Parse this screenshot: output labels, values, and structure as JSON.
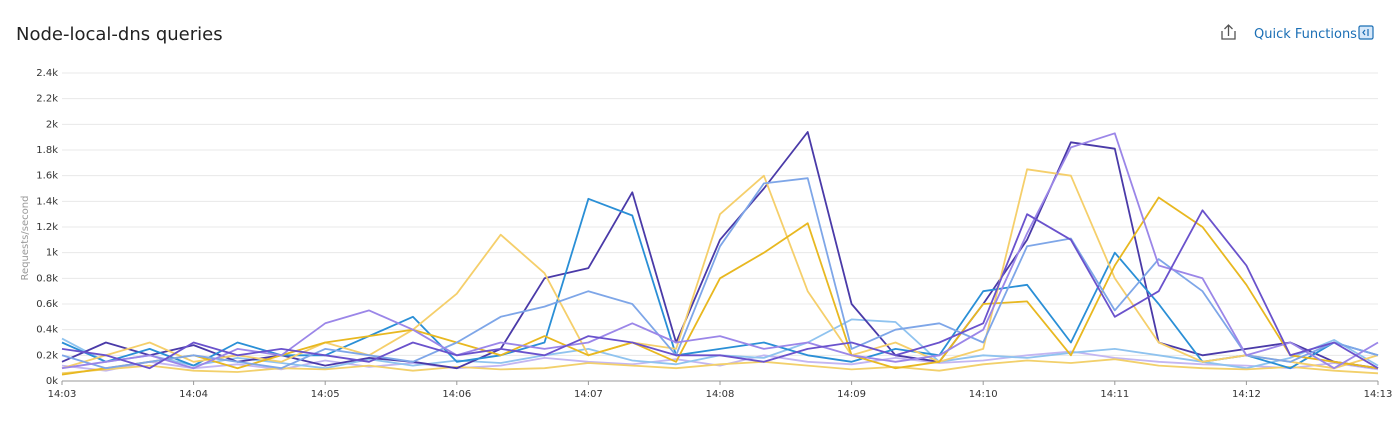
{
  "header": {
    "title": "Node-local-dns queries",
    "link": "Quick Functions"
  },
  "chart_data": {
    "type": "line",
    "y_label": "Requests/second",
    "categories": [
      "14:03",
      null,
      null,
      "14:04",
      null,
      null,
      "14:05",
      null,
      null,
      "14:06",
      null,
      null,
      "14:07",
      null,
      null,
      "14:08",
      null,
      null,
      "14:09",
      null,
      null,
      "14:10",
      null,
      null,
      "14:11",
      null,
      null,
      "14:12",
      null,
      null,
      "14:13"
    ],
    "ylim": [
      0,
      2400
    ],
    "yticks": [
      {
        "value": 0,
        "label": "0k"
      },
      {
        "value": 200,
        "label": "0.2k"
      },
      {
        "value": 400,
        "label": "0.4k"
      },
      {
        "value": 600,
        "label": "0.6k"
      },
      {
        "value": 800,
        "label": "0.8k"
      },
      {
        "value": 1000,
        "label": "1k"
      },
      {
        "value": 1200,
        "label": "1.2k"
      },
      {
        "value": 1400,
        "label": "1.4k"
      },
      {
        "value": 1600,
        "label": "1.6k"
      },
      {
        "value": 1800,
        "label": "1.8k"
      },
      {
        "value": 2000,
        "label": "2k"
      },
      {
        "value": 2200,
        "label": "2.2k"
      },
      {
        "value": 2400,
        "label": "2.4k"
      }
    ],
    "grid": true,
    "series": [
      {
        "color": "#c3b6f2",
        "values": [
          120,
          80,
          150,
          100,
          130,
          90,
          160,
          110,
          140,
          100,
          120,
          180,
          150,
          130,
          170,
          120,
          200,
          150,
          130,
          180,
          140,
          160,
          200,
          230,
          180,
          150,
          130,
          120,
          100,
          140,
          90
        ]
      },
      {
        "color": "#8fc3ef",
        "values": [
          330,
          150,
          200,
          120,
          180,
          140,
          100,
          170,
          120,
          160,
          140,
          200,
          250,
          160,
          130,
          200,
          180,
          300,
          480,
          460,
          150,
          200,
          180,
          220,
          250,
          200,
          150,
          100,
          180,
          320,
          120
        ]
      },
      {
        "color": "#f2d06b",
        "values": [
          60,
          90,
          120,
          80,
          70,
          100,
          90,
          120,
          80,
          110,
          90,
          100,
          140,
          120,
          100,
          130,
          150,
          120,
          90,
          110,
          80,
          130,
          160,
          140,
          170,
          120,
          100,
          90,
          110,
          80,
          60
        ]
      },
      {
        "color": "#4a3aa8",
        "values": [
          150,
          300,
          200,
          280,
          150,
          200,
          120,
          180,
          150,
          100,
          250,
          800,
          880,
          1470,
          300,
          1100,
          1500,
          1940,
          600,
          200,
          150,
          600,
          1100,
          1860,
          1810,
          300,
          200,
          250,
          300,
          150,
          100
        ]
      },
      {
        "color": "#2a8fd6",
        "values": [
          300,
          150,
          250,
          120,
          300,
          200,
          200,
          350,
          500,
          150,
          200,
          300,
          1420,
          1290,
          200,
          250,
          300,
          200,
          150,
          250,
          200,
          700,
          750,
          300,
          1000,
          600,
          150,
          200,
          100,
          300,
          200
        ]
      },
      {
        "color": "#f5cf6b",
        "values": [
          100,
          200,
          300,
          150,
          200,
          150,
          300,
          200,
          400,
          680,
          1140,
          840,
          200,
          300,
          250,
          1300,
          1600,
          700,
          200,
          300,
          150,
          250,
          1650,
          1600,
          800,
          300,
          150,
          200,
          150,
          100,
          200
        ]
      },
      {
        "color": "#e8b820",
        "values": [
          50,
          100,
          150,
          200,
          100,
          200,
          300,
          350,
          400,
          300,
          200,
          350,
          200,
          300,
          150,
          800,
          1000,
          1230,
          200,
          100,
          150,
          600,
          620,
          200,
          900,
          1430,
          1200,
          750,
          200,
          150,
          100
        ]
      },
      {
        "color": "#7ea6e8",
        "values": [
          200,
          100,
          150,
          200,
          150,
          100,
          250,
          200,
          150,
          300,
          500,
          580,
          700,
          600,
          200,
          1050,
          1540,
          1580,
          250,
          400,
          450,
          300,
          1050,
          1110,
          550,
          950,
          700,
          200,
          150,
          300,
          200
        ]
      },
      {
        "color": "#9b86e8",
        "values": [
          100,
          150,
          200,
          100,
          250,
          200,
          450,
          550,
          400,
          200,
          300,
          250,
          300,
          450,
          300,
          350,
          250,
          300,
          200,
          150,
          200,
          400,
          1150,
          1820,
          1930,
          900,
          800,
          200,
          300,
          100,
          300
        ]
      },
      {
        "color": "#6a52cc",
        "values": [
          250,
          200,
          100,
          300,
          200,
          250,
          200,
          150,
          300,
          200,
          250,
          200,
          350,
          300,
          200,
          200,
          150,
          250,
          300,
          200,
          300,
          450,
          1300,
          1100,
          500,
          700,
          1330,
          900,
          200,
          300,
          100
        ]
      }
    ]
  }
}
